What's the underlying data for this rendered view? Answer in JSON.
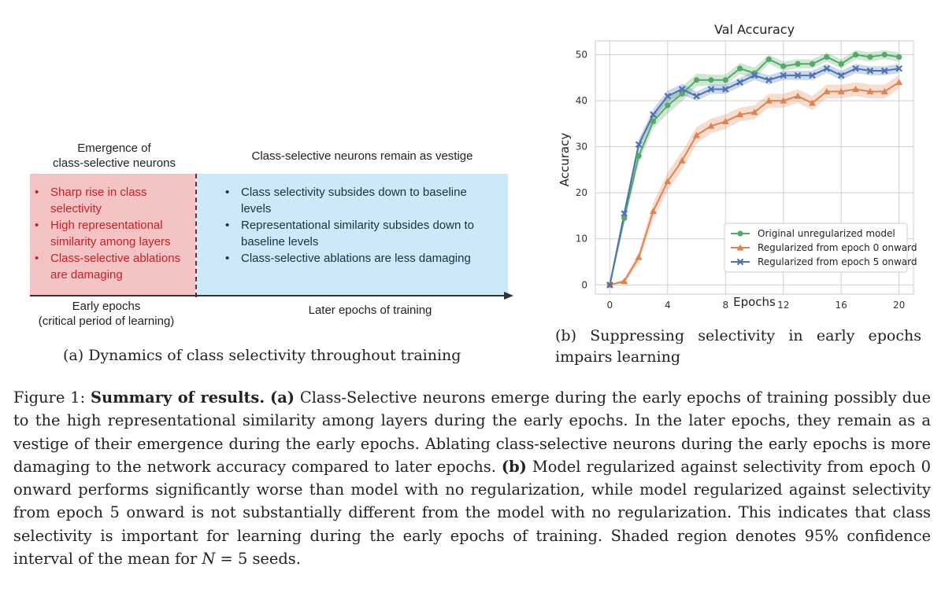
{
  "diagram": {
    "early_heading": "Emergence of\nclass-selective neurons",
    "later_heading": "Class-selective neurons remain as vestige",
    "early_points": [
      "Sharp rise in class selectivity",
      "High representational similarity among layers",
      "Class-selective ablations are damaging"
    ],
    "later_points": [
      "Class selectivity subsides down to baseline levels",
      "Representational similarity subsides down to baseline levels",
      "Class-selective ablations are less damaging"
    ],
    "early_axis_label": "Early epochs\n(critical period of learning)",
    "later_axis_label": "Later epochs of training",
    "colors": {
      "early_bg": "#f4c4c5",
      "later_bg": "#cde9f7",
      "early_text": "#c61f26",
      "later_text": "#1d2e44"
    }
  },
  "caption_a": "(a) Dynamics of class selectivity throughout training",
  "caption_b": "(b) Suppressing selectivity in early epochs impairs learning",
  "chart_data": {
    "type": "line",
    "title": "Val Accuracy",
    "xlabel": "Epochs",
    "ylabel": "Accuracy",
    "xlim": [
      -1,
      21
    ],
    "ylim": [
      -2,
      53
    ],
    "xticks": [
      0,
      4,
      8,
      12,
      16,
      20
    ],
    "yticks": [
      0,
      10,
      20,
      30,
      40,
      50
    ],
    "grid": true,
    "legend_position": "lower-right",
    "x": [
      0,
      1,
      2,
      3,
      4,
      5,
      6,
      7,
      8,
      9,
      10,
      11,
      12,
      13,
      14,
      15,
      16,
      17,
      18,
      19,
      20
    ],
    "series": [
      {
        "name": "Original unregularized model",
        "color": "#55a868",
        "marker": "circle",
        "values": [
          0,
          14.5,
          28,
          35.5,
          39,
          41.5,
          44.5,
          44.5,
          44.5,
          47,
          46,
          49,
          47.5,
          48,
          48,
          49.5,
          48,
          50,
          49.5,
          50,
          49.5
        ],
        "ci": [
          0,
          1.2,
          1.5,
          1.5,
          1.8,
          1.6,
          1.4,
          1.2,
          1.2,
          1.2,
          1.2,
          1,
          1,
          1,
          1,
          1,
          1,
          1,
          1,
          1,
          1
        ]
      },
      {
        "name": "Regularized from epoch 0 onward",
        "color": "#dd8452",
        "marker": "triangle",
        "values": [
          0,
          0.8,
          6,
          16,
          22.5,
          27,
          32.5,
          34.5,
          35.5,
          37,
          37.5,
          40,
          40,
          41,
          39.5,
          42,
          42,
          42.5,
          42,
          42,
          44
        ],
        "ci": [
          0,
          0.5,
          1.2,
          1.8,
          2,
          2,
          1.8,
          1.6,
          1.6,
          1.5,
          1.5,
          1.5,
          1.5,
          1.5,
          1.5,
          1.5,
          1.5,
          1.5,
          1.5,
          1.5,
          1.5
        ]
      },
      {
        "name": "Regularized from epoch 5 onward",
        "color": "#4c72b0",
        "marker": "x",
        "values": [
          0,
          15.5,
          30.5,
          37,
          41,
          42.5,
          41,
          42.5,
          42.5,
          44,
          45.5,
          44.5,
          45.5,
          45.5,
          45.5,
          47,
          45.5,
          47,
          46.5,
          46.5,
          47
        ],
        "ci": [
          0,
          1,
          1.2,
          1.2,
          1.2,
          1.2,
          1,
          1,
          1,
          1,
          1,
          1,
          1,
          1,
          1,
          1,
          1,
          1,
          1,
          1,
          1
        ]
      }
    ]
  },
  "figure_caption": {
    "label": "Figure 1:",
    "title": "Summary of results.",
    "a_label": "(a)",
    "a_text": "Class-Selective neurons emerge during the early epochs of training possibly due to the high representational similarity among layers during the early epochs. In the later epochs, they remain as a vestige of their emergence during the early epochs. Ablating class-selective neurons during the early epochs is more damaging to the network accuracy compared to later epochs.",
    "b_label": "(b)",
    "b_text": "Model regularized against selectivity from epoch 0 onward performs significantly worse than model with no regularization, while model regularized against selectivity from epoch 5 onward is not substantially different from the model with no regularization. This indicates that class selectivity is important for learning during the early epochs of training. Shaded region denotes 95% confidence interval of the mean for",
    "n_symbol": "N",
    "n_equation": " = 5 seeds."
  }
}
